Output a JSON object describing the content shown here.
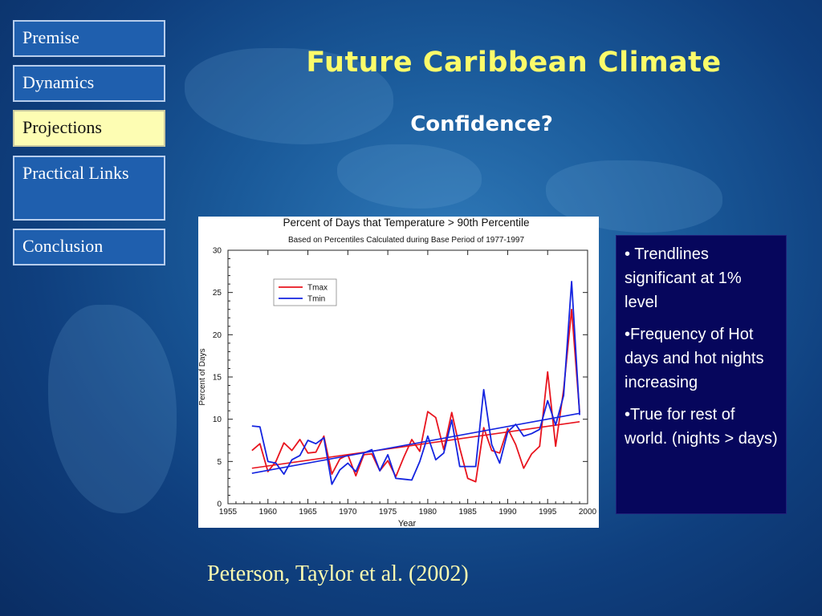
{
  "nav": {
    "items": [
      {
        "label": "Premise",
        "active": false
      },
      {
        "label": "Dynamics",
        "active": false
      },
      {
        "label": "Projections",
        "active": true
      },
      {
        "label": "Practical Links",
        "active": false
      },
      {
        "label": "Conclusion",
        "active": false
      }
    ]
  },
  "slide": {
    "title": "Future Caribbean Climate",
    "subtitle": "Confidence?",
    "citation": "Peterson, Taylor  et al. (2002)"
  },
  "bullets": [
    "• Trendlines significant at 1% level",
    "•Frequency of Hot days and hot nights increasing",
    "•True for rest of world. (nights > days)"
  ],
  "colors": {
    "title": "#fbfb6a",
    "nav_active_bg": "#fdfdb3",
    "nav_bg": "#1f5fae",
    "bullet_box": "#06065c",
    "tmax": "#e8141e",
    "tmin": "#1424e0"
  },
  "chart_data": {
    "type": "line",
    "title": "Percent of Days that Temperature > 90th Percentile",
    "subtitle": "Based on Percentiles Calculated during Base Period of 1977-1997",
    "xlabel": "Year",
    "ylabel": "Percent of Days",
    "xlim": [
      1955,
      2000
    ],
    "ylim": [
      0,
      30
    ],
    "xticks": [
      1955,
      1960,
      1965,
      1970,
      1975,
      1980,
      1985,
      1990,
      1995,
      2000
    ],
    "yticks": [
      0,
      5,
      10,
      15,
      20,
      25,
      30
    ],
    "legend_position": "top-left",
    "x": [
      1958,
      1959,
      1960,
      1961,
      1962,
      1963,
      1964,
      1965,
      1966,
      1967,
      1968,
      1969,
      1970,
      1971,
      1972,
      1973,
      1974,
      1975,
      1976,
      1977,
      1978,
      1979,
      1980,
      1981,
      1982,
      1983,
      1984,
      1985,
      1986,
      1987,
      1988,
      1989,
      1990,
      1991,
      1992,
      1993,
      1994,
      1995,
      1996,
      1997,
      1998,
      1999
    ],
    "series": [
      {
        "name": "Tmax",
        "color": "#e8141e",
        "values": [
          6.3,
          7.1,
          3.8,
          5.0,
          7.2,
          6.3,
          7.6,
          6.0,
          6.1,
          8.0,
          3.5,
          5.3,
          5.8,
          3.3,
          5.8,
          5.9,
          3.9,
          5.1,
          3.2,
          5.5,
          7.6,
          6.2,
          10.9,
          10.2,
          6.4,
          10.8,
          6.6,
          3.0,
          2.6,
          9.0,
          6.3,
          6.0,
          8.9,
          7.0,
          4.2,
          5.9,
          6.8,
          15.6,
          6.8,
          13.5,
          23.0,
          10.8
        ],
        "trend": [
          4.2,
          9.7
        ]
      },
      {
        "name": "Tmin",
        "color": "#1424e0",
        "values": [
          9.2,
          9.1,
          5.0,
          4.8,
          3.5,
          5.2,
          5.7,
          7.5,
          7.1,
          7.8,
          2.3,
          4.0,
          4.8,
          3.8,
          6.0,
          6.4,
          3.9,
          5.8,
          3.0,
          2.9,
          2.8,
          5.0,
          8.0,
          5.2,
          6.0,
          9.9,
          4.4,
          4.4,
          4.4,
          13.5,
          7.0,
          4.8,
          8.5,
          9.4,
          8.0,
          8.3,
          8.8,
          12.2,
          9.3,
          12.8,
          26.3,
          10.5
        ],
        "trend": [
          3.6,
          10.7
        ]
      }
    ]
  }
}
